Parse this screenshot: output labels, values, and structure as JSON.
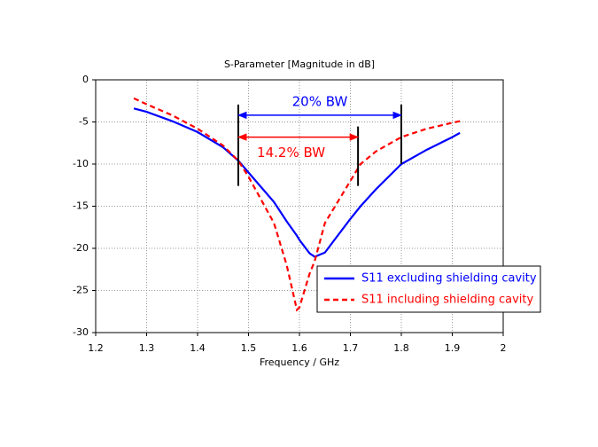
{
  "chart_data": {
    "type": "line",
    "title": "S-Parameter [Magnitude in dB]",
    "x_label": "Frequency / GHz",
    "x": [
      1.275,
      1.3,
      1.35,
      1.4,
      1.45,
      1.48,
      1.5,
      1.55,
      1.575,
      1.595,
      1.6,
      1.62,
      1.63,
      1.65,
      1.7,
      1.72,
      1.75,
      1.8,
      1.85,
      1.9,
      1.915
    ],
    "series": [
      {
        "name": "S11 excluding shielding cavity",
        "color": "#0000ff",
        "dash": "solid",
        "values": [
          -3.4,
          -3.8,
          -4.9,
          -6.2,
          -8.0,
          -9.6,
          -11.0,
          -14.5,
          -16.8,
          -18.5,
          -19.0,
          -20.6,
          -21.0,
          -20.5,
          -16.5,
          -15.0,
          -13.0,
          -10.0,
          -8.3,
          -6.8,
          -6.3
        ]
      },
      {
        "name": "S11 including shielding cavity",
        "color": "#ff0000",
        "dash": "dashed",
        "values": [
          -2.2,
          -2.9,
          -4.2,
          -5.8,
          -7.8,
          -9.6,
          -11.5,
          -17.0,
          -22.0,
          -27.3,
          -27.0,
          -23.0,
          -21.5,
          -17.0,
          -12.0,
          -10.0,
          -8.5,
          -6.8,
          -5.8,
          -5.1,
          -4.9
        ]
      }
    ],
    "bandwidth_markers": [
      {
        "label": "20% BW",
        "color": "#0000ff",
        "x": [
          1.48,
          1.8
        ],
        "y": -4.2
      },
      {
        "label": "14.2% BW",
        "color": "#ff0000",
        "x": [
          1.48,
          1.715
        ],
        "y": -6.8
      }
    ],
    "xlim": [
      1.2,
      2
    ],
    "xticks": [
      1.2,
      1.3,
      1.4,
      1.5,
      1.6,
      1.7,
      1.8,
      1.9,
      2
    ],
    "ylim": [
      -30,
      0
    ],
    "yticks": [
      -30,
      -25,
      -20,
      -15,
      -10,
      -5,
      0
    ],
    "grid": true,
    "legend": "lower right"
  }
}
